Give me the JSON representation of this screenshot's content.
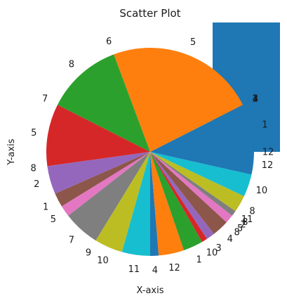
{
  "chart_data": {
    "type": "pie",
    "title": "Scatter Plot",
    "xlabel": "X-axis",
    "ylabel": "Y-axis",
    "slices": [
      {
        "label": "1",
        "value": 8.5,
        "color": "#1f77b4"
      },
      {
        "label": "2",
        "value": 0,
        "color": "#1f77b4"
      },
      {
        "label": "3",
        "value": 0,
        "color": "#1f77b4"
      },
      {
        "label": "1",
        "value": 0,
        "color": "#1f77b4"
      },
      {
        "label": "4",
        "value": 0,
        "color": "#1f77b4"
      },
      {
        "label": "5",
        "value": 26.5,
        "color": "#ff7f0e"
      },
      {
        "label": "6",
        "value": 0,
        "color": "#ff7f0e"
      },
      {
        "label": "8",
        "value": 13.5,
        "color": "#2ca02c"
      },
      {
        "label": "7",
        "value": 0,
        "color": "#2ca02c"
      },
      {
        "label": "5",
        "value": 11.0,
        "color": "#d62728"
      },
      {
        "label": "8",
        "value": 0,
        "color": "#d62728"
      },
      {
        "label": "2",
        "value": 5.0,
        "color": "#9467bd"
      },
      {
        "label": "1",
        "value": 2.5,
        "color": "#8c564b"
      },
      {
        "label": "5",
        "value": 2.0,
        "color": "#e377c2"
      },
      {
        "label": "7",
        "value": 6.5,
        "color": "#7f7f7f"
      },
      {
        "label": "9",
        "value": 0,
        "color": "#7f7f7f"
      },
      {
        "label": "10",
        "value": 5.0,
        "color": "#bcbd22"
      },
      {
        "label": "11",
        "value": 5.0,
        "color": "#17becf"
      },
      {
        "label": "4",
        "value": 1.5,
        "color": "#1f77b4"
      },
      {
        "label": "12",
        "value": 4.5,
        "color": "#ff7f0e"
      },
      {
        "label": "1",
        "value": 3.5,
        "color": "#2ca02c"
      },
      {
        "label": "10",
        "value": 1.0,
        "color": "#d62728"
      },
      {
        "label": "3",
        "value": 1.5,
        "color": "#9467bd"
      },
      {
        "label": "4",
        "value": 3.0,
        "color": "#8c564b"
      },
      {
        "label": "8",
        "value": 0,
        "color": "#8c564b"
      },
      {
        "label": "5",
        "value": 1.5,
        "color": "#e377c2"
      },
      {
        "label": "2",
        "value": 0,
        "color": "#e377c2"
      },
      {
        "label": "8",
        "value": 1.0,
        "color": "#7f7f7f"
      },
      {
        "label": "11",
        "value": 0,
        "color": "#7f7f7f"
      },
      {
        "label": "8",
        "value": 3.0,
        "color": "#bcbd22"
      },
      {
        "label": "10",
        "value": 4.0,
        "color": "#17becf"
      },
      {
        "label": "12",
        "value": 4.0,
        "color": "#1f77b4"
      },
      {
        "label": "12",
        "value": 0,
        "color": "#1f77b4"
      }
    ]
  }
}
